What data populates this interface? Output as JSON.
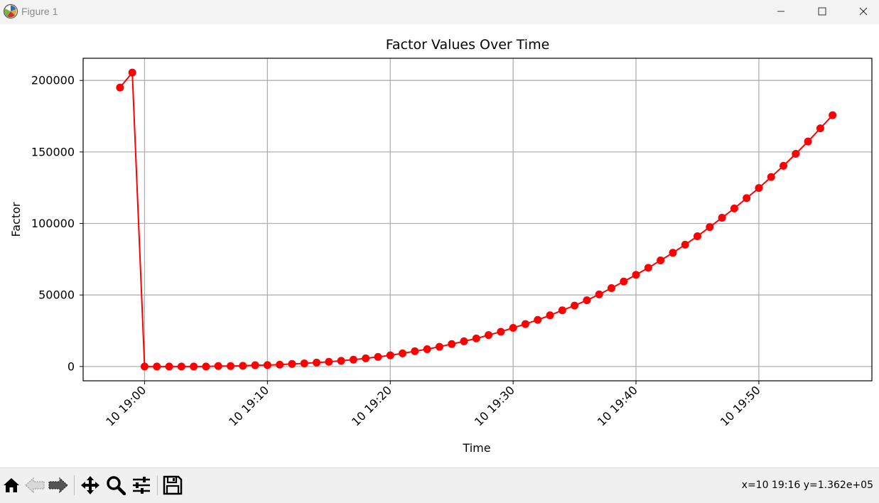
{
  "window": {
    "title": "Figure 1",
    "buttons": [
      "minimize",
      "maximize",
      "close"
    ]
  },
  "chart_data": {
    "type": "line",
    "title": "Factor Values Over Time",
    "xlabel": "Time",
    "ylabel": "Factor",
    "x_axis_type": "time",
    "x_tick_labels": [
      "10 19:00",
      "10 19:10",
      "10 19:20",
      "10 19:30",
      "10 19:40",
      "10 19:50"
    ],
    "x_ticks": [
      "19:00",
      "19:10",
      "19:20",
      "19:30",
      "19:40",
      "19:50"
    ],
    "xlim": [
      "18:55",
      "19:59.2"
    ],
    "y_ticks": [
      0,
      50000,
      100000,
      150000,
      200000
    ],
    "y_tick_labels": [
      "0",
      "50000",
      "100000",
      "150000",
      "200000"
    ],
    "ylim": [
      -10000,
      215500
    ],
    "grid": true,
    "line_color": "#ff0000",
    "marker": "circle",
    "series": [
      {
        "x": [
          "18:58",
          "18:59",
          "19:00",
          "19:01",
          "19:02",
          "19:03",
          "19:04",
          "19:05",
          "19:06",
          "19:07",
          "19:08",
          "19:09",
          "19:10",
          "19:11",
          "19:12",
          "19:13",
          "19:14",
          "19:15",
          "19:16",
          "19:17",
          "19:18",
          "19:19",
          "19:20",
          "19:21",
          "19:22",
          "19:23",
          "19:24",
          "19:25",
          "19:26",
          "19:27",
          "19:28",
          "19:29",
          "19:30",
          "19:31",
          "19:32",
          "19:33",
          "19:34",
          "19:35",
          "19:36",
          "19:37",
          "19:38",
          "19:39",
          "19:40",
          "19:41",
          "19:42",
          "19:43",
          "19:44",
          "19:45",
          "19:46",
          "19:47",
          "19:48",
          "19:49",
          "19:50",
          "19:51",
          "19:52",
          "19:53",
          "19:54",
          "19:55",
          "19:56"
        ],
        "values": [
          195000,
          205500,
          0,
          0,
          0,
          0,
          0,
          0,
          300,
          300,
          500,
          900,
          1000,
          1300,
          1800,
          2200,
          2700,
          3300,
          4000,
          4800,
          5700,
          6700,
          7800,
          9200,
          10700,
          12100,
          13800,
          15700,
          17600,
          19600,
          22000,
          24300,
          27000,
          29700,
          32600,
          35800,
          39300,
          42600,
          46300,
          50400,
          54800,
          59400,
          64100,
          69000,
          74200,
          79500,
          85200,
          91100,
          97500,
          104000,
          110500,
          117700,
          124800,
          132500,
          140300,
          148700,
          157300,
          166500,
          175700
        ]
      }
    ]
  },
  "toolbar": {
    "tools": [
      "home-icon",
      "back-icon",
      "forward-icon",
      "pan-icon",
      "zoom-icon",
      "configure-subplots-icon",
      "save-icon"
    ],
    "coordinate_readout": "x=10 19:16 y=1.362e+05"
  }
}
